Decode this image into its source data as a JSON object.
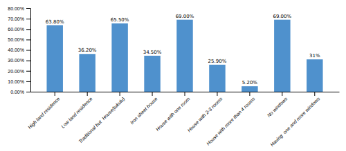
{
  "chart_data": {
    "type": "bar",
    "categories": [
      "High land residence",
      "Low land residence",
      "Traditional hut  House(tukulu)",
      "Iron sheet house",
      "House with one room",
      "House with 2-3 rooms",
      "House with more than 4 rooms",
      "No windows",
      "Having  one and more windows"
    ],
    "values": [
      63.8,
      36.2,
      65.5,
      34.5,
      69.0,
      25.9,
      5.2,
      69.0,
      31.0
    ],
    "value_labels": [
      "63.80%",
      "36.20%",
      "65.50%",
      "34.50%",
      "69.00%",
      "25.90%",
      "5.20%",
      "69.00%",
      "31%"
    ],
    "data_labels": true,
    "color": "#4F91CD",
    "ylim": [
      0,
      80
    ],
    "yticks": [
      {
        "value": 0,
        "label": "0.00%"
      },
      {
        "value": 10,
        "label": "10.00%"
      },
      {
        "value": 20,
        "label": "20.00%"
      },
      {
        "value": 30,
        "label": "30.00%"
      },
      {
        "value": 40,
        "label": "40.00%"
      },
      {
        "value": 50,
        "label": "50.00%"
      },
      {
        "value": 60,
        "label": "60.00%"
      },
      {
        "value": 70,
        "label": "70.00%"
      },
      {
        "value": 80,
        "label": "80.00%"
      }
    ],
    "grid": false
  }
}
